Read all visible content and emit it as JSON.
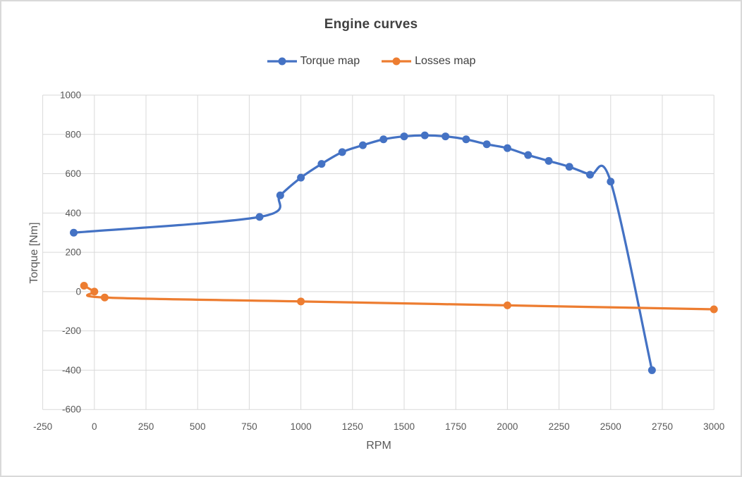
{
  "colors": {
    "torque_series": "#4472C4",
    "losses_series": "#ED7D31",
    "gridline": "#D9D9D9",
    "tick_text": "#595959",
    "axis_title_text": "#595959",
    "chart_title_text": "#404040",
    "frame_border": "#D9D9D9",
    "background": "#FFFFFF"
  },
  "chart_data": {
    "type": "line",
    "title": "Engine curves",
    "xlabel": "RPM",
    "ylabel": "Torque [Nm]",
    "xlim": [
      -250,
      3000
    ],
    "ylim": [
      -600,
      1000
    ],
    "xticks": [
      -250,
      0,
      250,
      500,
      750,
      1000,
      1250,
      1500,
      1750,
      2000,
      2250,
      2500,
      2750,
      3000
    ],
    "yticks": [
      -600,
      -400,
      -200,
      0,
      200,
      400,
      600,
      800,
      1000
    ],
    "grid": true,
    "legend_position": "top",
    "smooth_lines": true,
    "series": [
      {
        "name": "Torque map",
        "color": "#4472C4",
        "marker": "circle",
        "points": [
          [
            -100,
            300
          ],
          [
            800,
            380
          ],
          [
            900,
            490
          ],
          [
            1000,
            580
          ],
          [
            1100,
            650
          ],
          [
            1200,
            710
          ],
          [
            1300,
            745
          ],
          [
            1400,
            775
          ],
          [
            1500,
            790
          ],
          [
            1600,
            795
          ],
          [
            1700,
            790
          ],
          [
            1800,
            775
          ],
          [
            1900,
            750
          ],
          [
            2000,
            730
          ],
          [
            2100,
            695
          ],
          [
            2200,
            665
          ],
          [
            2300,
            635
          ],
          [
            2400,
            595
          ],
          [
            2500,
            560
          ],
          [
            2700,
            -400
          ]
        ]
      },
      {
        "name": "Losses map",
        "color": "#ED7D31",
        "marker": "circle",
        "points": [
          [
            -50,
            30
          ],
          [
            0,
            0
          ],
          [
            50,
            -30
          ],
          [
            1000,
            -50
          ],
          [
            2000,
            -70
          ],
          [
            3000,
            -90
          ]
        ]
      }
    ]
  }
}
